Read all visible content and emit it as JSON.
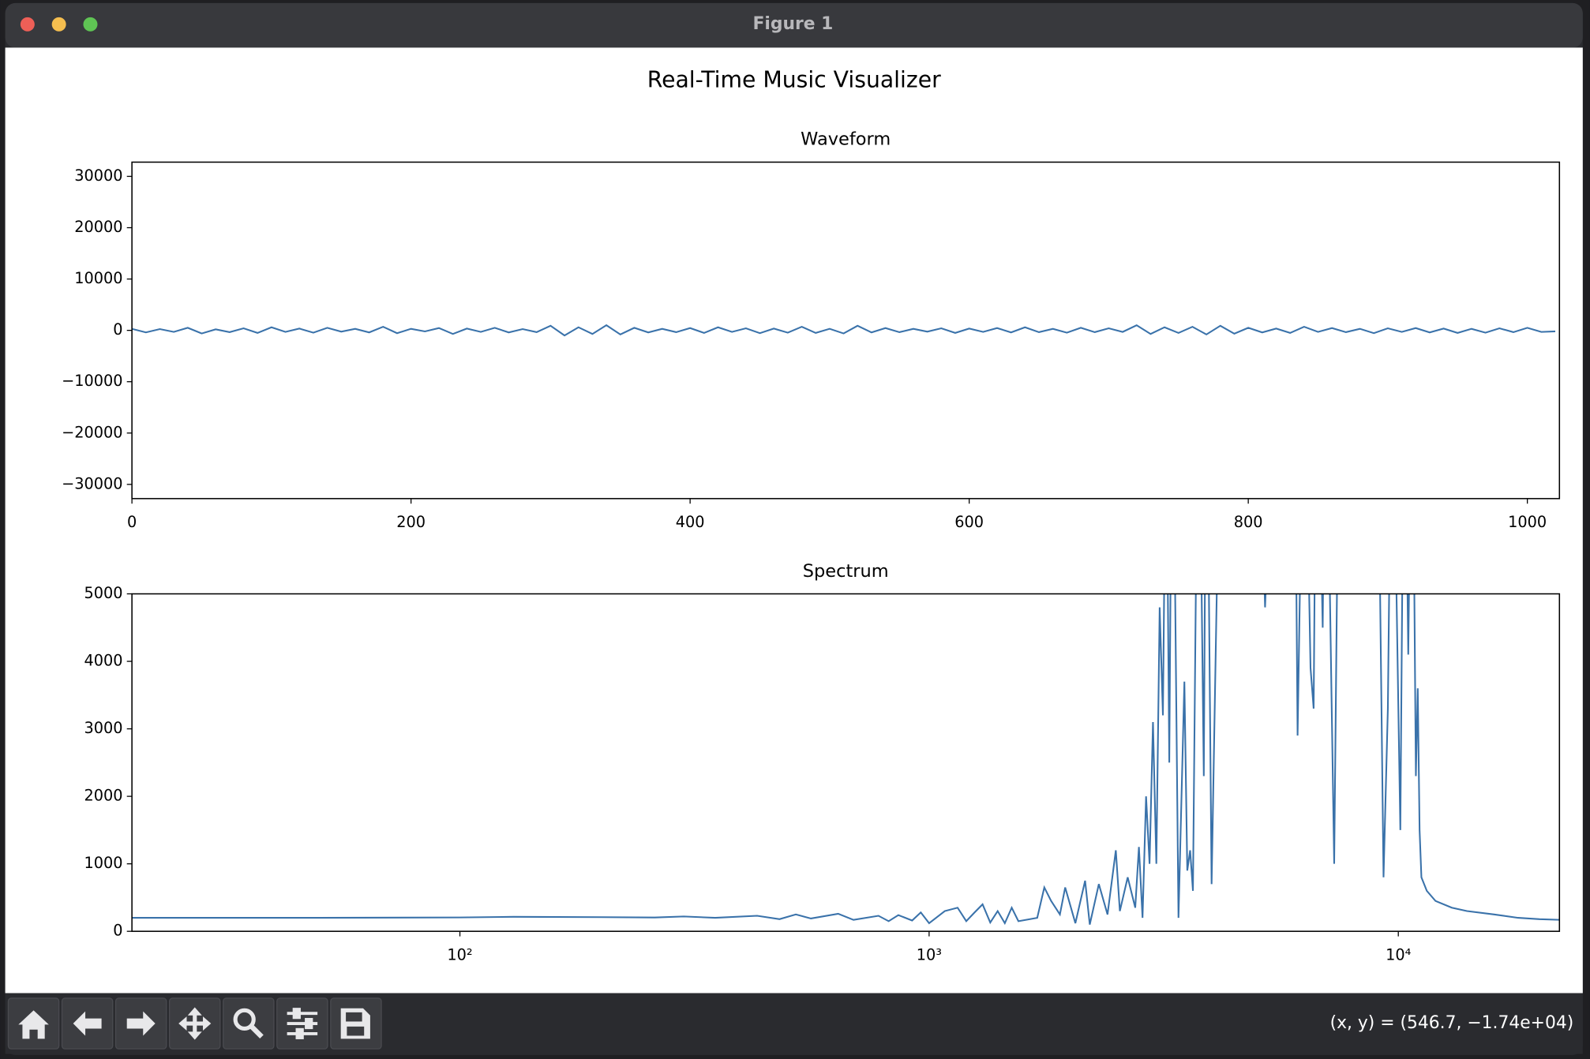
{
  "window": {
    "title": "Figure 1"
  },
  "figure": {
    "title": "Real-Time Music Visualizer"
  },
  "chart_data": [
    {
      "type": "line",
      "title": "Waveform",
      "color": "#3a72aa",
      "x": [
        0,
        10,
        20,
        30,
        40,
        50,
        60,
        70,
        80,
        90,
        100,
        110,
        120,
        130,
        140,
        150,
        160,
        170,
        180,
        190,
        200,
        210,
        220,
        230,
        240,
        250,
        260,
        270,
        280,
        290,
        300,
        310,
        320,
        330,
        340,
        350,
        360,
        370,
        380,
        390,
        400,
        410,
        420,
        430,
        440,
        450,
        460,
        470,
        480,
        490,
        500,
        510,
        520,
        530,
        540,
        550,
        560,
        570,
        580,
        590,
        600,
        610,
        620,
        630,
        640,
        650,
        660,
        670,
        680,
        690,
        700,
        710,
        720,
        730,
        740,
        750,
        760,
        770,
        780,
        790,
        800,
        810,
        820,
        830,
        840,
        850,
        860,
        870,
        880,
        890,
        900,
        910,
        920,
        930,
        940,
        950,
        960,
        970,
        980,
        990,
        1000,
        1010,
        1020
      ],
      "values": [
        300,
        -400,
        250,
        -300,
        500,
        -600,
        200,
        -350,
        400,
        -500,
        600,
        -300,
        350,
        -450,
        500,
        -250,
        300,
        -400,
        700,
        -550,
        300,
        -200,
        450,
        -700,
        350,
        -300,
        500,
        -400,
        250,
        -350,
        900,
        -1000,
        600,
        -700,
        1000,
        -800,
        500,
        -400,
        300,
        -350,
        450,
        -500,
        600,
        -300,
        400,
        -550,
        350,
        -450,
        700,
        -500,
        300,
        -600,
        900,
        -400,
        450,
        -350,
        300,
        -250,
        400,
        -500,
        350,
        -300,
        450,
        -400,
        600,
        -350,
        300,
        -450,
        500,
        -350,
        400,
        -300,
        1000,
        -700,
        600,
        -500,
        700,
        -800,
        900,
        -650,
        500,
        -400,
        350,
        -500,
        700,
        -300,
        450,
        -350,
        300,
        -550,
        400,
        -300,
        450,
        -400,
        350,
        -500,
        300,
        -450,
        400,
        -350,
        500,
        -300,
        -200
      ],
      "xlim": [
        0,
        1023
      ],
      "xticks": [
        0,
        200,
        400,
        600,
        800,
        1000
      ],
      "ylim": [
        -32768,
        32767
      ],
      "yticks": [
        {
          "value": -30000,
          "label": "−30000"
        },
        {
          "value": -20000,
          "label": "−20000"
        },
        {
          "value": -10000,
          "label": "−10000"
        },
        0,
        10000,
        20000,
        30000
      ]
    },
    {
      "type": "line",
      "title": "Spectrum",
      "color": "#3a72aa",
      "xscale": "log",
      "x": [
        20,
        50,
        100,
        130,
        200,
        260,
        300,
        350,
        430,
        480,
        520,
        560,
        640,
        690,
        780,
        820,
        860,
        920,
        960,
        1000,
        1080,
        1150,
        1200,
        1250,
        1300,
        1350,
        1400,
        1450,
        1500,
        1550,
        1700,
        1760,
        1820,
        1900,
        1950,
        2050,
        2150,
        2200,
        2300,
        2400,
        2500,
        2550,
        2650,
        2750,
        2800,
        2850,
        2900,
        2950,
        3000,
        3050,
        3100,
        3150,
        3200,
        3250,
        3300,
        3400,
        3500,
        3550,
        3600,
        3650,
        3750,
        3850,
        3900,
        4000,
        4200,
        5000,
        5200,
        5500,
        6000,
        6100,
        6300,
        6500,
        6600,
        6700,
        6900,
        7000,
        7300,
        7500,
        9000,
        9300,
        9500,
        9700,
        10100,
        10300,
        10500,
        10700,
        10900,
        11000,
        11100,
        11200,
        11500,
        12000,
        13000,
        14000,
        16000,
        18000,
        20000,
        22050
      ],
      "values": [
        200,
        200,
        205,
        215,
        210,
        205,
        220,
        200,
        230,
        180,
        250,
        190,
        260,
        170,
        230,
        150,
        240,
        160,
        280,
        120,
        300,
        350,
        150,
        280,
        400,
        130,
        300,
        120,
        350,
        150,
        200,
        650,
        450,
        250,
        650,
        120,
        750,
        100,
        700,
        250,
        1200,
        300,
        800,
        350,
        1250,
        200,
        2000,
        1000,
        3100,
        1000,
        4800,
        3200,
        8000,
        2500,
        9000,
        200,
        3700,
        900,
        1200,
        600,
        9000,
        2300,
        9000,
        700,
        9000,
        9000,
        4800,
        9000,
        9000,
        2900,
        9000,
        3900,
        3300,
        9000,
        4500,
        9000,
        1000,
        9000,
        9000,
        800,
        3300,
        9000,
        1500,
        9000,
        4100,
        9000,
        2300,
        3600,
        1500,
        800,
        600,
        450,
        350,
        300,
        250,
        200,
        180,
        170
      ],
      "xlim": [
        20,
        22050
      ],
      "xticks": [
        {
          "value": 100,
          "label": "10²"
        },
        {
          "value": 1000,
          "label": "10³"
        },
        {
          "value": 10000,
          "label": "10⁴"
        }
      ],
      "ylim": [
        0,
        5000
      ],
      "yticks": [
        0,
        1000,
        2000,
        3000,
        4000,
        5000
      ]
    }
  ],
  "status": "(x, y) = (546.7, −1.74e+04)"
}
